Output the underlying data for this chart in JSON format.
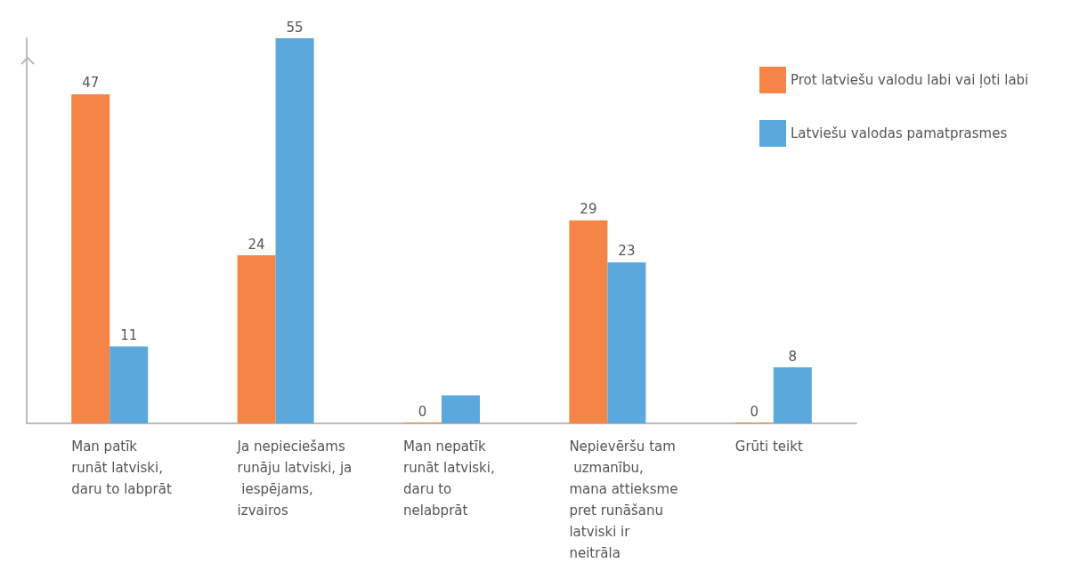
{
  "chart_data": {
    "type": "bar",
    "categories": [
      "Man patīk runāt latviski, daru to labprāt",
      "Ja nepieciešams runāju latviski, ja iespējams, izvairos",
      "Man nepatīk runāt latviski, daru to nelabprāt",
      "Nepievēršu tam uzmanību, mana attieksme pret runāšanu latviski ir neitrāla",
      "Grūti teikt"
    ],
    "series": [
      {
        "name": "Prot latviešu valodu labi vai ļoti labi",
        "color": "#f48546",
        "values": [
          47,
          24,
          0,
          29,
          0
        ],
        "value_labels": [
          "47",
          "24",
          "0",
          "29",
          "0"
        ]
      },
      {
        "name": "Latviešu valodas pamatprasmes",
        "color": "#5aa8dc",
        "values": [
          11,
          55,
          4,
          23,
          8
        ],
        "value_labels": [
          "11",
          "55",
          null,
          "23",
          "8"
        ]
      }
    ],
    "legend": "top right",
    "grid": false
  }
}
